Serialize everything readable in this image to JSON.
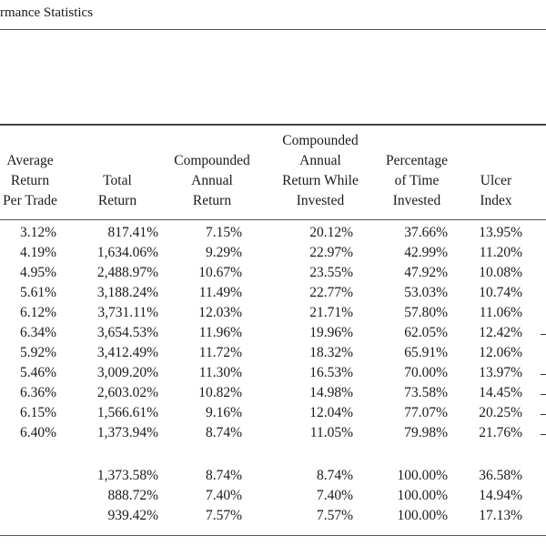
{
  "caption": "rmance Statistics",
  "headers": [
    [
      "Average",
      "Return",
      "Per Trade"
    ],
    [
      "Total",
      "Return"
    ],
    [
      "Compounded",
      "Annual",
      "Return"
    ],
    [
      "Compounded",
      "Annual",
      "Return While",
      "Invested"
    ],
    [
      "Percentage",
      "of Time",
      "Invested"
    ],
    [
      "Ulcer",
      "Index"
    ]
  ],
  "rows": [
    [
      "3.12%",
      "817.41%",
      "7.15%",
      "20.12%",
      "37.66%",
      "13.95%"
    ],
    [
      "4.19%",
      "1,634.06%",
      "9.29%",
      "22.97%",
      "42.99%",
      "11.20%"
    ],
    [
      "4.95%",
      "2,488.97%",
      "10.67%",
      "23.55%",
      "47.92%",
      "10.08%"
    ],
    [
      "5.61%",
      "3,188.24%",
      "11.49%",
      "22.77%",
      "53.03%",
      "10.74%"
    ],
    [
      "6.12%",
      "3,731.11%",
      "12.03%",
      "21.71%",
      "57.80%",
      "11.06%"
    ],
    [
      "6.34%",
      "3,654.53%",
      "11.96%",
      "19.96%",
      "62.05%",
      "12.42%"
    ],
    [
      "5.92%",
      "3,412.49%",
      "11.72%",
      "18.32%",
      "65.91%",
      "12.06%"
    ],
    [
      "5.46%",
      "3,009.20%",
      "11.30%",
      "16.53%",
      "70.00%",
      "13.97%"
    ],
    [
      "6.36%",
      "2,603.02%",
      "10.82%",
      "14.98%",
      "73.58%",
      "14.45%"
    ],
    [
      "6.15%",
      "1,566.61%",
      "9.16%",
      "12.04%",
      "77.07%",
      "20.25%"
    ],
    [
      "6.40%",
      "1,373.94%",
      "8.74%",
      "11.05%",
      "79.98%",
      "21.76%"
    ]
  ],
  "benchmark_rows": [
    [
      "",
      "1,373.58%",
      "8.74%",
      "8.74%",
      "100.00%",
      "36.58%"
    ],
    [
      "",
      "888.72%",
      "7.40%",
      "7.40%",
      "100.00%",
      "14.94%"
    ],
    [
      "",
      "939.42%",
      "7.57%",
      "7.57%",
      "100.00%",
      "17.13%"
    ]
  ]
}
